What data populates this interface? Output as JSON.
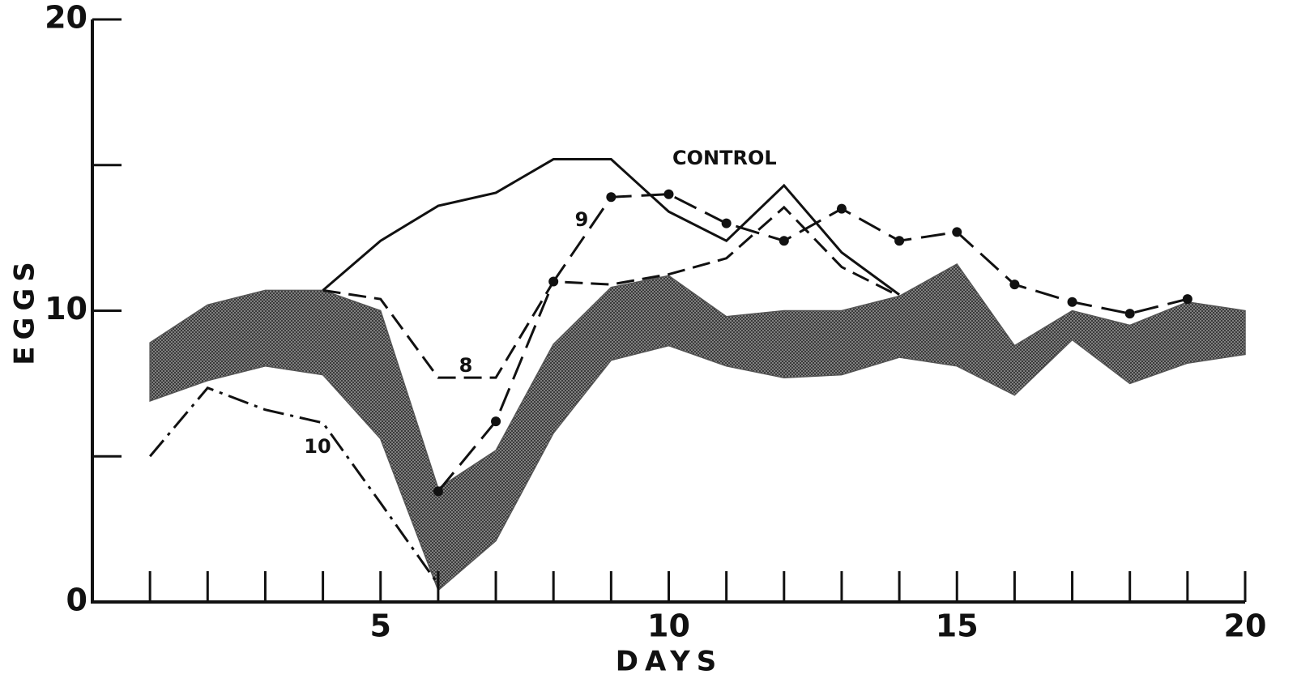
{
  "chart_data": {
    "type": "line",
    "x_label": "DAYS",
    "y_label": "EGGS",
    "xlim": [
      0,
      20
    ],
    "ylim": [
      0,
      20
    ],
    "xticks": [
      5,
      10,
      15,
      20
    ],
    "yticks": [
      0,
      10,
      20
    ],
    "xminor_ticks": [
      1,
      2,
      3,
      4,
      5,
      6,
      7,
      8,
      9,
      10,
      11,
      12,
      13,
      14,
      15,
      16,
      17,
      18,
      19,
      20
    ],
    "yminor_ticks": [
      5,
      15
    ],
    "x": [
      1,
      2,
      3,
      4,
      5,
      6,
      7,
      8,
      9,
      10,
      11,
      12,
      13,
      14,
      15,
      16,
      17,
      18,
      19,
      20
    ],
    "band": {
      "color": "#555555",
      "upper": [
        8.9,
        10.2,
        10.7,
        10.7,
        10.0,
        3.9,
        5.2,
        8.85,
        10.8,
        11.2,
        9.8,
        10.0,
        10.0,
        10.5,
        11.6,
        8.8,
        10.0,
        9.5,
        10.3,
        10.0
      ],
      "lower": [
        6.9,
        7.6,
        8.1,
        7.8,
        5.6,
        0.4,
        2.1,
        5.8,
        8.3,
        8.8,
        8.1,
        7.7,
        7.8,
        8.4,
        8.1,
        7.1,
        9.0,
        7.5,
        8.2,
        8.5
      ]
    },
    "series": [
      {
        "name": "CONTROL",
        "color": "#111111",
        "dash": "none",
        "marker": "none",
        "values": [
          null,
          null,
          null,
          10.7,
          12.4,
          13.6,
          14.05,
          15.2,
          15.2,
          13.4,
          12.4,
          14.3,
          12.0,
          10.55,
          null,
          null,
          null,
          null,
          null,
          null
        ]
      },
      {
        "name": "8",
        "color": "#111111",
        "dash": "22 10",
        "marker": "none",
        "values": [
          null,
          null,
          null,
          10.7,
          10.4,
          7.7,
          7.7,
          11.0,
          10.9,
          11.25,
          11.8,
          13.55,
          11.5,
          10.5,
          null,
          null,
          null,
          null,
          null,
          null
        ]
      },
      {
        "name": "9",
        "color": "#111111",
        "dash": "30 12",
        "marker": "dot",
        "values": [
          null,
          null,
          null,
          null,
          null,
          3.8,
          6.2,
          11.0,
          13.9,
          14.0,
          13.0,
          12.4,
          13.5,
          12.4,
          12.7,
          10.9,
          10.3,
          9.9,
          10.4,
          null
        ]
      },
      {
        "name": "10",
        "color": "#111111",
        "dash": "26 8 4 8",
        "marker": "none",
        "values": [
          5.0,
          7.35,
          6.6,
          6.15,
          3.4,
          0.6,
          null,
          null,
          null,
          null,
          null,
          null,
          null,
          null,
          null,
          null,
          null,
          null,
          null,
          null
        ]
      }
    ]
  }
}
